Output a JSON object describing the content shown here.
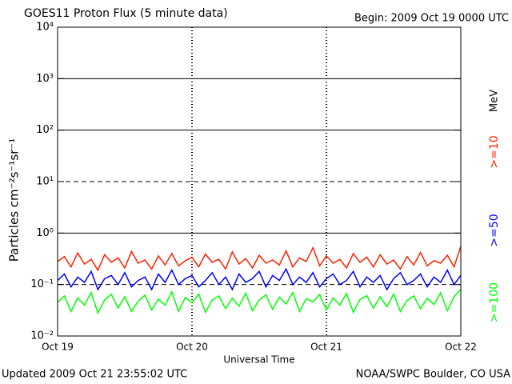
{
  "chart_data": {
    "type": "line",
    "title": "GOES11 Proton Flux (5 minute data)",
    "subtitle": "Begin: 2009 Oct 19 0000 UTC",
    "ylabel": "Particles cm⁻²s⁻¹sr⁻¹",
    "xlabel": "Universal Time",
    "footer_left": "Updated 2009 Oct 21 23:55:02 UTC",
    "footer_right": "NOAA/SWPC Boulder, CO USA",
    "legend_unit": "MeV",
    "log_y": true,
    "grid": true,
    "xlim": [
      0,
      3
    ],
    "xticks": [
      {
        "value": 0,
        "label": "Oct 19"
      },
      {
        "value": 1,
        "label": "Oct 20"
      },
      {
        "value": 2,
        "label": "Oct 21"
      },
      {
        "value": 3,
        "label": "Oct 22"
      }
    ],
    "ylim": [
      0.01,
      10000
    ],
    "yticks": [
      {
        "value": 0.01,
        "label": "10⁻²"
      },
      {
        "value": 0.1,
        "label": "10⁻¹"
      },
      {
        "value": 1,
        "label": "10⁰"
      },
      {
        "value": 10,
        "label": "10¹"
      },
      {
        "value": 100,
        "label": "10²"
      },
      {
        "value": 1000,
        "label": "10³"
      },
      {
        "value": 10000,
        "label": "10⁴"
      }
    ],
    "x": [
      0,
      0.05,
      0.1,
      0.15,
      0.2,
      0.25,
      0.3,
      0.35,
      0.4,
      0.45,
      0.5,
      0.55,
      0.6,
      0.65,
      0.7,
      0.75,
      0.8,
      0.85,
      0.9,
      0.95,
      1,
      1.05,
      1.1,
      1.15,
      1.2,
      1.25,
      1.3,
      1.35,
      1.4,
      1.45,
      1.5,
      1.55,
      1.6,
      1.65,
      1.7,
      1.75,
      1.8,
      1.85,
      1.9,
      1.95,
      2,
      2.05,
      2.1,
      2.15,
      2.2,
      2.25,
      2.3,
      2.35,
      2.4,
      2.45,
      2.5,
      2.55,
      2.6,
      2.65,
      2.7,
      2.75,
      2.8,
      2.85,
      2.9,
      2.95,
      3
    ],
    "series": [
      {
        "name": ">=10",
        "color": "#ff2000",
        "values": [
          0.28,
          0.35,
          0.22,
          0.41,
          0.25,
          0.31,
          0.19,
          0.38,
          0.27,
          0.33,
          0.21,
          0.44,
          0.26,
          0.3,
          0.2,
          0.36,
          0.24,
          0.4,
          0.23,
          0.29,
          0.34,
          0.22,
          0.39,
          0.27,
          0.31,
          0.2,
          0.43,
          0.25,
          0.32,
          0.21,
          0.37,
          0.26,
          0.3,
          0.24,
          0.45,
          0.22,
          0.33,
          0.28,
          0.52,
          0.23,
          0.36,
          0.26,
          0.31,
          0.21,
          0.4,
          0.27,
          0.34,
          0.22,
          0.38,
          0.25,
          0.3,
          0.2,
          0.35,
          0.24,
          0.42,
          0.23,
          0.29,
          0.26,
          0.37,
          0.22,
          0.55
        ]
      },
      {
        "name": ">=50",
        "color": "#0000ff",
        "values": [
          0.12,
          0.16,
          0.09,
          0.14,
          0.11,
          0.18,
          0.08,
          0.13,
          0.15,
          0.1,
          0.17,
          0.09,
          0.12,
          0.14,
          0.08,
          0.16,
          0.11,
          0.19,
          0.1,
          0.13,
          0.15,
          0.09,
          0.12,
          0.17,
          0.1,
          0.14,
          0.08,
          0.16,
          0.11,
          0.13,
          0.18,
          0.09,
          0.15,
          0.12,
          0.2,
          0.1,
          0.14,
          0.11,
          0.17,
          0.09,
          0.13,
          0.16,
          0.1,
          0.12,
          0.18,
          0.09,
          0.14,
          0.11,
          0.15,
          0.08,
          0.13,
          0.17,
          0.1,
          0.12,
          0.16,
          0.09,
          0.14,
          0.11,
          0.19,
          0.1,
          0.15
        ]
      },
      {
        "name": ">=100",
        "color": "#00ff00",
        "values": [
          0.045,
          0.06,
          0.03,
          0.055,
          0.04,
          0.07,
          0.028,
          0.05,
          0.065,
          0.035,
          0.058,
          0.03,
          0.048,
          0.062,
          0.032,
          0.052,
          0.04,
          0.072,
          0.03,
          0.056,
          0.044,
          0.066,
          0.029,
          0.05,
          0.06,
          0.034,
          0.054,
          0.038,
          0.068,
          0.031,
          0.05,
          0.063,
          0.033,
          0.057,
          0.042,
          0.07,
          0.03,
          0.053,
          0.046,
          0.064,
          0.032,
          0.055,
          0.04,
          0.067,
          0.029,
          0.051,
          0.061,
          0.035,
          0.058,
          0.037,
          0.065,
          0.03,
          0.049,
          0.06,
          0.034,
          0.054,
          0.041,
          0.069,
          0.031,
          0.058,
          0.08
        ]
      }
    ]
  }
}
